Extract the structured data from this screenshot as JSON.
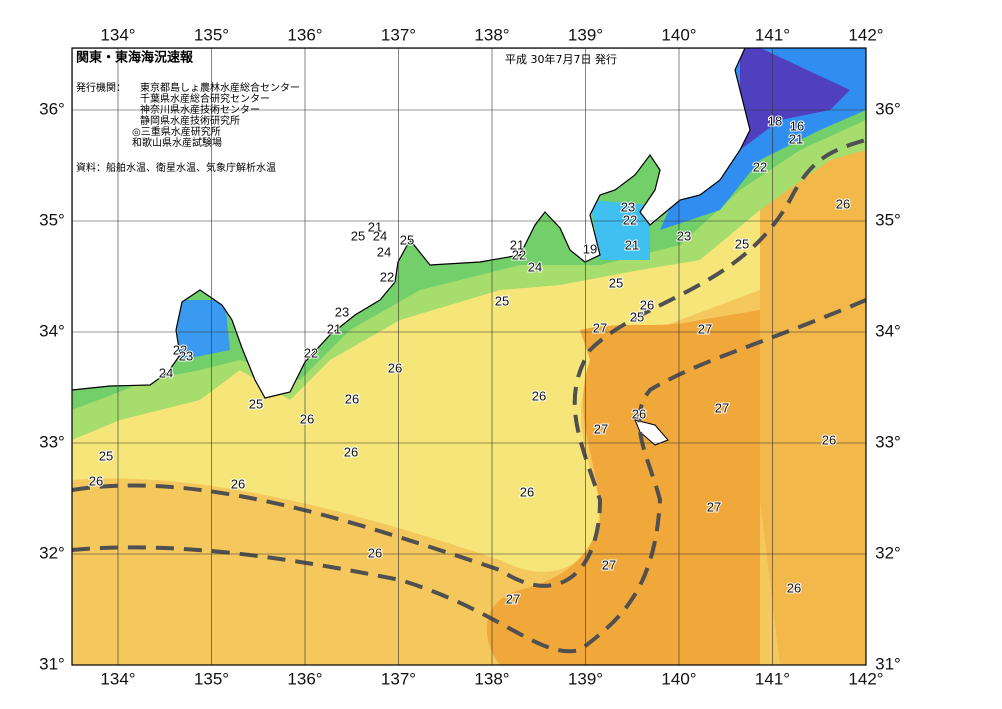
{
  "header": {
    "title": "関東・東海海況速報",
    "date": "平成 30年7月7日 発行",
    "issuers_label": "発行機関：",
    "issuers": [
      "東京都島しょ農林水産総合センター",
      "千葉県水産総合研究センター",
      "神奈川県水産技術センター",
      "静岡県水産技術研究所",
      "◎三重県水産研究所",
      "和歌山県水産試験場"
    ],
    "source": "資料：船舶水温、衛星水温、気象庁解析水温"
  },
  "axes": {
    "lon_labels": [
      "134°",
      "135°",
      "136°",
      "137°",
      "138°",
      "139°",
      "140°",
      "141°",
      "142°"
    ],
    "lat_labels": [
      "31°",
      "32°",
      "33°",
      "34°",
      "35°",
      "36°"
    ]
  },
  "contour_labels": [
    18,
    16,
    21,
    22,
    26,
    25,
    23,
    23,
    22,
    21,
    19,
    21,
    22,
    24,
    25,
    26,
    25,
    27,
    27,
    25,
    21,
    24,
    25,
    24,
    22,
    23,
    21,
    22,
    22,
    23,
    24,
    26,
    26,
    26,
    25,
    26,
    27,
    26,
    27,
    26,
    26,
    25,
    26,
    26,
    26,
    27,
    26,
    27,
    27,
    26,
    25
  ]
}
